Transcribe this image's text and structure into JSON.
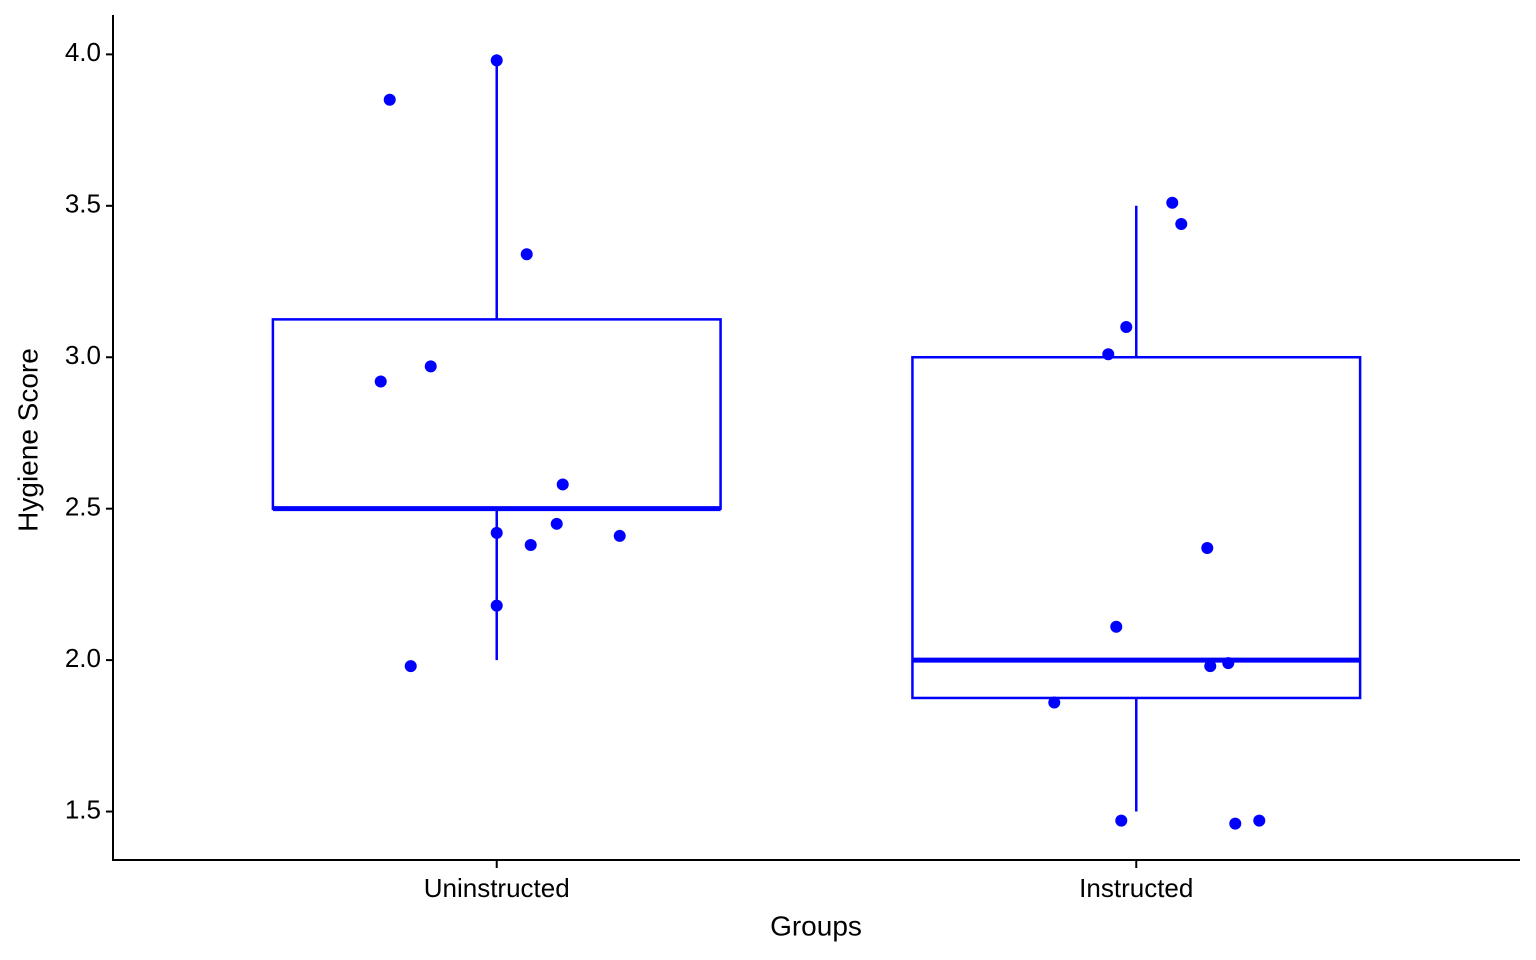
{
  "chart_data": {
    "type": "box",
    "x_label": "Groups",
    "y_label": "Hygiene Score",
    "color": "#0000ff",
    "categories": [
      "Uninstructed",
      "Instructed"
    ],
    "boxes": [
      {
        "whislo": 2.0,
        "q1": 2.5,
        "med": 2.5,
        "q3": 3.125,
        "whishi": 4.0
      },
      {
        "whislo": 1.5,
        "q1": 1.875,
        "med": 2.0,
        "q3": 3.0,
        "whishi": 3.5
      }
    ],
    "points": [
      [
        3.85,
        3.98,
        3.34,
        2.97,
        2.92,
        2.58,
        2.42,
        2.45,
        2.41,
        2.38,
        2.18,
        1.98
      ],
      [
        3.51,
        3.44,
        3.1,
        3.01,
        2.37,
        2.11,
        1.98,
        1.99,
        1.86,
        1.47,
        1.46,
        1.47
      ]
    ],
    "ylim": [
      1.34,
      4.13
    ],
    "yticks": [
      1.5,
      {
        "value": 2,
        "label": "2.0"
      },
      2.5,
      {
        "value": 3,
        "label": "3.0"
      },
      3.5,
      {
        "value": 4,
        "label": "4.0"
      }
    ]
  }
}
